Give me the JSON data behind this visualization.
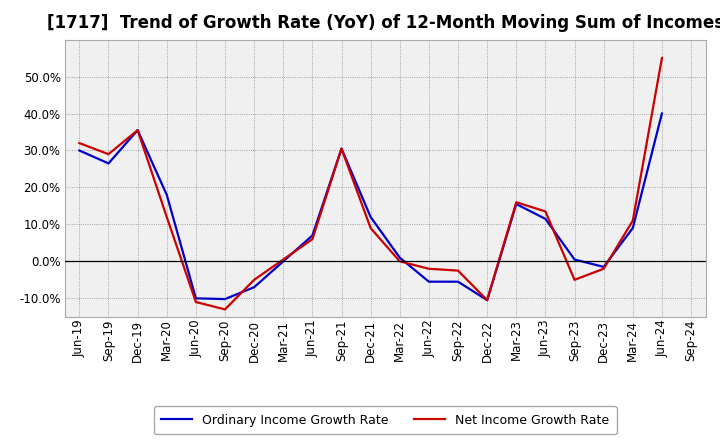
{
  "title": "[1717]  Trend of Growth Rate (YoY) of 12-Month Moving Sum of Incomes",
  "x_labels": [
    "Jun-19",
    "Sep-19",
    "Dec-19",
    "Mar-20",
    "Jun-20",
    "Sep-20",
    "Dec-20",
    "Mar-21",
    "Jun-21",
    "Sep-21",
    "Dec-21",
    "Mar-22",
    "Jun-22",
    "Sep-22",
    "Dec-22",
    "Mar-23",
    "Jun-23",
    "Sep-23",
    "Dec-23",
    "Mar-24",
    "Jun-24",
    "Sep-24"
  ],
  "ordinary_income": [
    30.0,
    26.5,
    35.5,
    18.0,
    -10.0,
    -10.2,
    -7.0,
    0.0,
    7.0,
    30.5,
    12.0,
    1.0,
    -5.5,
    -5.5,
    -10.5,
    15.5,
    11.5,
    0.5,
    -1.5,
    9.0,
    40.0,
    null
  ],
  "net_income": [
    32.0,
    29.0,
    35.5,
    12.0,
    -11.0,
    -13.0,
    -5.0,
    0.5,
    6.0,
    30.5,
    9.0,
    0.0,
    -2.0,
    -2.5,
    -10.5,
    16.0,
    13.5,
    -5.0,
    -2.0,
    11.0,
    55.0,
    null
  ],
  "ordinary_color": "#0000cc",
  "net_color": "#cc0000",
  "background_color": "#ffffff",
  "plot_bg_color": "#f0f0f0",
  "ylim": [
    -15,
    60
  ],
  "yticks": [
    -10,
    0,
    10,
    20,
    30,
    40,
    50
  ],
  "legend_ordinary": "Ordinary Income Growth Rate",
  "legend_net": "Net Income Growth Rate",
  "title_fontsize": 12,
  "axis_fontsize": 8.5
}
